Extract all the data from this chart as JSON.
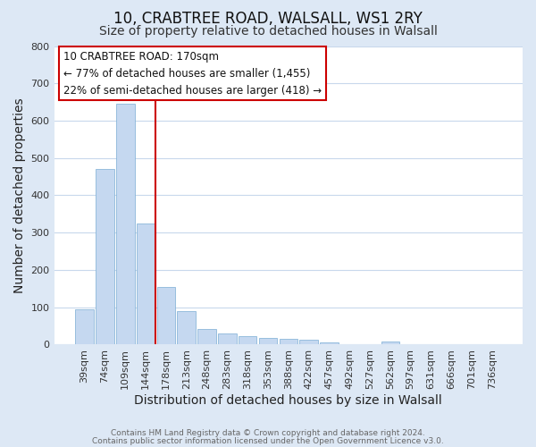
{
  "title": "10, CRABTREE ROAD, WALSALL, WS1 2RY",
  "subtitle": "Size of property relative to detached houses in Walsall",
  "xlabel": "Distribution of detached houses by size in Walsall",
  "ylabel": "Number of detached properties",
  "bar_labels": [
    "39sqm",
    "74sqm",
    "109sqm",
    "144sqm",
    "178sqm",
    "213sqm",
    "248sqm",
    "283sqm",
    "318sqm",
    "353sqm",
    "388sqm",
    "422sqm",
    "457sqm",
    "492sqm",
    "527sqm",
    "562sqm",
    "597sqm",
    "631sqm",
    "666sqm",
    "701sqm",
    "736sqm"
  ],
  "bar_values": [
    95,
    470,
    645,
    325,
    155,
    90,
    42,
    29,
    22,
    17,
    16,
    12,
    5,
    0,
    0,
    8,
    0,
    0,
    0,
    0,
    0
  ],
  "bar_color": "#c5d8f0",
  "bar_edge_color": "#7aadd4",
  "vline_color": "#cc0000",
  "ylim": [
    0,
    800
  ],
  "yticks": [
    0,
    100,
    200,
    300,
    400,
    500,
    600,
    700,
    800
  ],
  "annotation_title": "10 CRABTREE ROAD: 170sqm",
  "annotation_line1": "← 77% of detached houses are smaller (1,455)",
  "annotation_line2": "22% of semi-detached houses are larger (418) →",
  "annotation_box_color": "#ffffff",
  "annotation_box_edge": "#cc0000",
  "footer1": "Contains HM Land Registry data © Crown copyright and database right 2024.",
  "footer2": "Contains public sector information licensed under the Open Government Licence v3.0.",
  "fig_background_color": "#dde8f5",
  "plot_background_color": "#ffffff",
  "grid_color": "#c8d8ec",
  "title_fontsize": 12,
  "subtitle_fontsize": 10,
  "axis_label_fontsize": 10,
  "tick_fontsize": 8,
  "annotation_fontsize": 8.5
}
